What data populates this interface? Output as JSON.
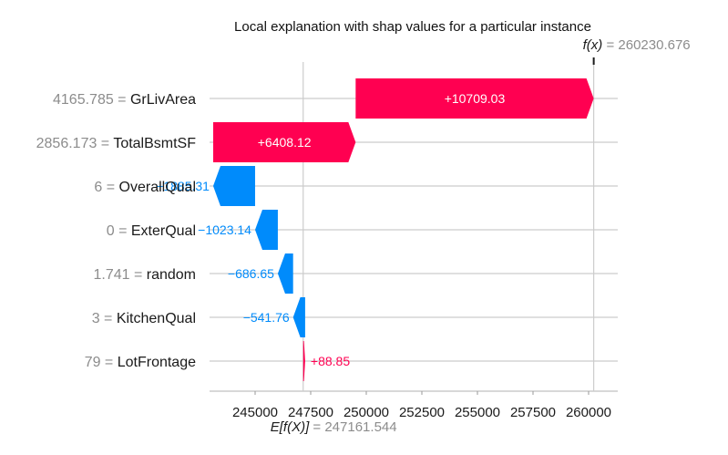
{
  "chart_data": {
    "type": "waterfall",
    "title": "Local explanation with shap values for a particular instance",
    "fx": {
      "label": "f(x)",
      "eq": " = ",
      "value": "260230.676",
      "numeric": 260230.676
    },
    "efx": {
      "label": "E[f(X)]",
      "eq": " = ",
      "value": "247161.544",
      "numeric": 247161.544
    },
    "features": [
      {
        "value": "4165.785",
        "name": "GrLivArea",
        "shap": 10709.03,
        "label": "+10709.03"
      },
      {
        "value": "2856.173",
        "name": "TotalBsmtSF",
        "shap": 6408.12,
        "label": "+6408.12"
      },
      {
        "value": "6",
        "name": "OverallQual",
        "shap": -1885.31,
        "label": "−1885.31"
      },
      {
        "value": "0",
        "name": "ExterQual",
        "shap": -1023.14,
        "label": "−1023.14"
      },
      {
        "value": "1.741",
        "name": "random",
        "shap": -686.65,
        "label": "−686.65"
      },
      {
        "value": "3",
        "name": "KitchenQual",
        "shap": -541.76,
        "label": "−541.76"
      },
      {
        "value": "79",
        "name": "LotFrontage",
        "shap": 88.85,
        "label": "+88.85"
      }
    ],
    "xticks": [
      "245000",
      "247500",
      "250000",
      "252500",
      "255000",
      "257500",
      "260000"
    ],
    "xtick_values": [
      245000,
      247500,
      250000,
      252500,
      255000,
      257500,
      260000
    ],
    "grid": true,
    "colors": {
      "positive": "#ff0051",
      "negative": "#008bfb",
      "grid": "#cccccc",
      "muted": "#8c8c8c"
    }
  }
}
